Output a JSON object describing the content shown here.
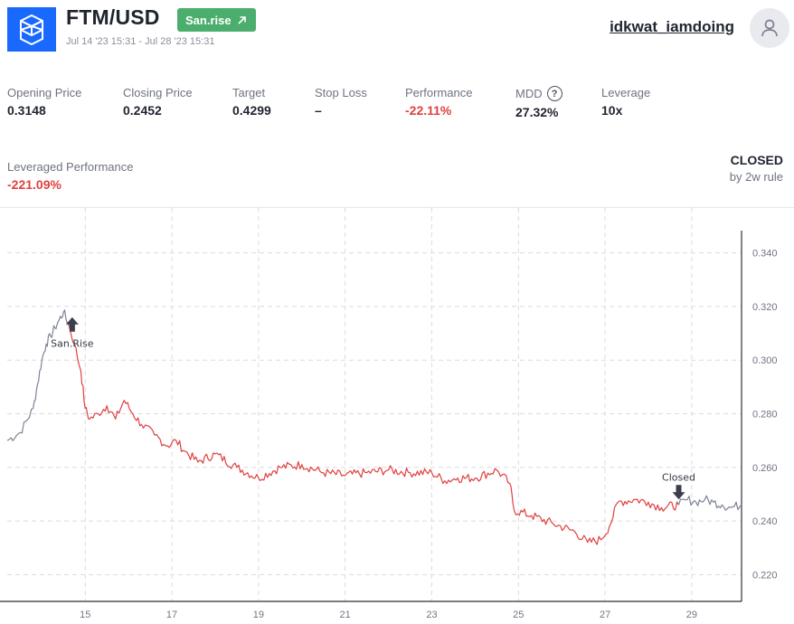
{
  "header": {
    "pair": "FTM/USD",
    "badge": "San.rise",
    "date_range": "Jul 14 '23 15:31 - Jul 28 '23 15:31",
    "username": "idkwat_iamdoing"
  },
  "stats": [
    {
      "label": "Opening Price",
      "value": "0.3148"
    },
    {
      "label": "Closing Price",
      "value": "0.2452"
    },
    {
      "label": "Target",
      "value": "0.4299"
    },
    {
      "label": "Stop Loss",
      "value": "–"
    },
    {
      "label": "Performance",
      "value": "-22.11%"
    },
    {
      "label": "MDD",
      "value": "27.32%"
    },
    {
      "label": "Leverage",
      "value": "10x"
    }
  ],
  "leveraged_performance": {
    "label": "Leveraged Performance",
    "value": "-221.09%"
  },
  "status": {
    "title": "CLOSED",
    "subtitle": "by 2w rule"
  },
  "colors": {
    "brand": "#1969ff",
    "badge": "#4cae6e",
    "negative": "#e0403f",
    "line_active": "#e0403f",
    "line_inactive": "#7d8394"
  },
  "icons": {
    "logo": "fantom-logo",
    "badge": "arrow-up-right-icon",
    "avatar": "user-icon",
    "help": "help-icon"
  },
  "chart_data": {
    "type": "line",
    "x_type": "date",
    "ylim": [
      0.21,
      0.35
    ],
    "y_ticks": [
      "0.340",
      "0.320",
      "0.300",
      "0.280",
      "0.260",
      "0.240",
      "0.220"
    ],
    "x_ticks": [
      "15",
      "17",
      "19",
      "21",
      "23",
      "25",
      "27",
      "29"
    ],
    "x_tick_days": [
      15,
      17,
      19,
      21,
      23,
      25,
      27,
      29
    ],
    "xlim": [
      13.2,
      30.15
    ],
    "grid": true,
    "series": [
      {
        "role": "pre-signal",
        "x": [
          13.2,
          13.5,
          13.8,
          13.9,
          14.0,
          14.1,
          14.2,
          14.3,
          14.4,
          14.5,
          14.6
        ],
        "y": [
          0.27,
          0.273,
          0.282,
          0.291,
          0.3,
          0.306,
          0.309,
          0.312,
          0.315,
          0.318,
          0.314
        ]
      },
      {
        "role": "signal-to-close",
        "x": [
          14.6,
          14.75,
          14.9,
          15.0,
          15.1,
          15.3,
          15.5,
          15.7,
          15.9,
          16.1,
          16.3,
          16.6,
          16.9,
          17.1,
          17.3,
          17.6,
          18.0,
          18.5,
          19.0,
          19.5,
          20.0,
          20.5,
          21.0,
          21.5,
          22.0,
          22.5,
          23.0,
          23.3,
          23.6,
          24.0,
          24.5,
          24.8,
          24.9,
          25.3,
          25.8,
          26.3,
          26.6,
          26.9,
          27.1,
          27.3,
          27.7,
          28.0,
          28.3,
          28.7
        ],
        "y": [
          0.314,
          0.306,
          0.296,
          0.282,
          0.278,
          0.28,
          0.283,
          0.278,
          0.285,
          0.28,
          0.276,
          0.272,
          0.268,
          0.27,
          0.266,
          0.262,
          0.265,
          0.26,
          0.256,
          0.26,
          0.261,
          0.258,
          0.257,
          0.258,
          0.259,
          0.258,
          0.258,
          0.255,
          0.256,
          0.256,
          0.259,
          0.254,
          0.244,
          0.242,
          0.239,
          0.236,
          0.232,
          0.233,
          0.238,
          0.247,
          0.248,
          0.247,
          0.245,
          0.246
        ]
      },
      {
        "role": "post-close",
        "x": [
          28.7,
          28.9,
          29.1,
          29.3,
          29.5,
          29.7,
          29.9,
          30.15
        ],
        "y": [
          0.246,
          0.248,
          0.247,
          0.248,
          0.247,
          0.246,
          0.245,
          0.246
        ]
      }
    ],
    "annotations": [
      {
        "label": "San.Rise",
        "x": 14.7,
        "y": 0.314,
        "marker": "arrow-up"
      },
      {
        "label": "Closed",
        "x": 28.7,
        "y": 0.246,
        "marker": "arrow-down"
      }
    ]
  }
}
